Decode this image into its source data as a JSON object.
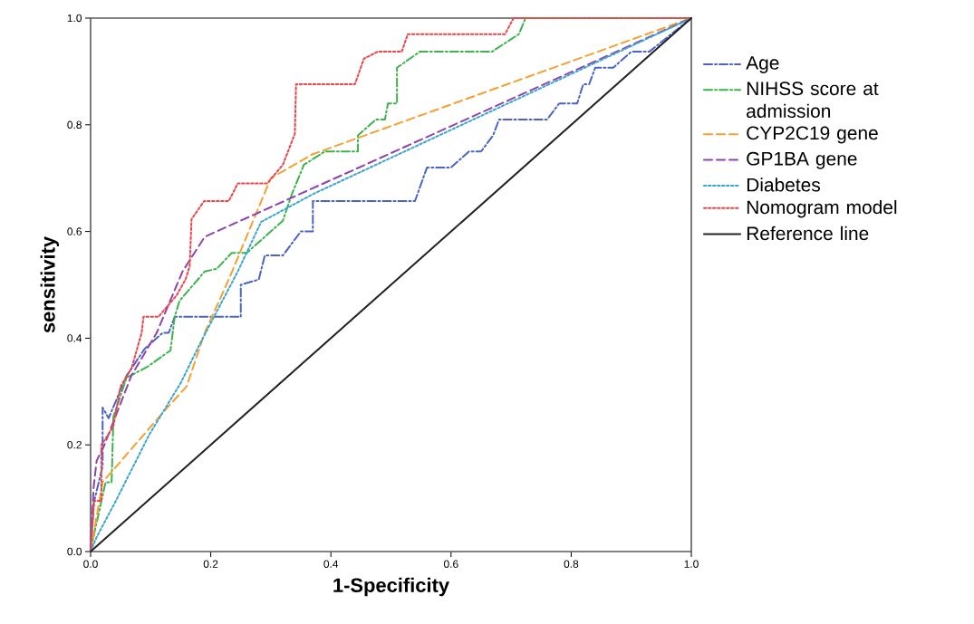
{
  "chart_data": {
    "type": "line",
    "xlabel": "1-Specificity",
    "ylabel": "sensitivity",
    "xlim": [
      0,
      1
    ],
    "ylim": [
      0,
      1
    ],
    "xticks": [
      {
        "value": 0,
        "label": "0.0"
      },
      0.2,
      0.4,
      0.6,
      0.8,
      {
        "value": 1,
        "label": "1.0"
      }
    ],
    "yticks": [
      {
        "value": 0,
        "label": "0.0"
      },
      0.2,
      0.4,
      0.6,
      0.8,
      {
        "value": 1,
        "label": "1.0"
      }
    ],
    "legend": "right",
    "grid": false,
    "series": [
      {
        "name": "Age",
        "color": "#4a63c8",
        "line_style": "dashdot",
        "x": [
          0,
          0.005,
          0.02,
          0.02,
          0.03,
          0.06,
          0.09,
          0.12,
          0.13,
          0.14,
          0.25,
          0.25,
          0.28,
          0.29,
          0.32,
          0.35,
          0.37,
          0.37,
          0.48,
          0.51,
          0.54,
          0.56,
          0.6,
          0.63,
          0.65,
          0.67,
          0.68,
          0.72,
          0.76,
          0.78,
          0.81,
          0.82,
          0.83,
          0.84,
          0.87,
          0.9,
          0.93,
          1
        ],
        "values": [
          0,
          0.09,
          0.16,
          0.27,
          0.25,
          0.33,
          0.38,
          0.41,
          0.41,
          0.44,
          0.44,
          0.5,
          0.51,
          0.555,
          0.555,
          0.6,
          0.6,
          0.657,
          0.657,
          0.657,
          0.657,
          0.72,
          0.72,
          0.75,
          0.75,
          0.78,
          0.81,
          0.81,
          0.81,
          0.84,
          0.84,
          0.876,
          0.876,
          0.907,
          0.907,
          0.937,
          0.937,
          1
        ]
      },
      {
        "name": "NIHSS score at admission",
        "color": "#3cb44b",
        "line_style": "dashdot",
        "x": [
          0,
          0.008,
          0.025,
          0.035,
          0.038,
          0.06,
          0.094,
          0.133,
          0.14,
          0.148,
          0.19,
          0.21,
          0.235,
          0.26,
          0.32,
          0.335,
          0.355,
          0.39,
          0.445,
          0.445,
          0.475,
          0.49,
          0.495,
          0.51,
          0.51,
          0.548,
          0.668,
          0.713,
          0.724,
          1
        ],
        "values": [
          0,
          0.044,
          0.13,
          0.13,
          0.253,
          0.326,
          0.346,
          0.377,
          0.44,
          0.47,
          0.525,
          0.53,
          0.56,
          0.56,
          0.62,
          0.67,
          0.725,
          0.75,
          0.75,
          0.78,
          0.81,
          0.81,
          0.84,
          0.84,
          0.907,
          0.937,
          0.937,
          0.97,
          1,
          1
        ]
      },
      {
        "name": "CYP2C19 gene",
        "color": "#f5a030",
        "line_style": "dashed",
        "x": [
          0,
          0.02,
          0.12,
          0.16,
          0.19,
          0.23,
          0.3,
          0.37,
          1
        ],
        "values": [
          0,
          0.13,
          0.26,
          0.31,
          0.41,
          0.51,
          0.7,
          0.745,
          1
        ]
      },
      {
        "name": "GP1BA gene",
        "color": "#8e44ad",
        "line_style": "dashed",
        "x": [
          0,
          0.005,
          0.01,
          0.023,
          0.068,
          0.11,
          0.153,
          0.19,
          1
        ],
        "values": [
          0,
          0.12,
          0.17,
          0.2,
          0.33,
          0.41,
          0.525,
          0.59,
          1
        ]
      },
      {
        "name": "Diabetes",
        "color": "#3aa6d0",
        "line_style": "dotted",
        "x": [
          0,
          0.01,
          0.042,
          0.098,
          0.15,
          0.184,
          0.245,
          0.284,
          0.37,
          1
        ],
        "values": [
          0,
          0.027,
          0.095,
          0.22,
          0.316,
          0.394,
          0.525,
          0.618,
          0.67,
          1
        ]
      },
      {
        "name": "Nomogram model",
        "color": "#f0434a",
        "line_style": "dotted",
        "x": [
          0,
          0.006,
          0.018,
          0.018,
          0.03,
          0.038,
          0.05,
          0.068,
          0.085,
          0.088,
          0.113,
          0.143,
          0.158,
          0.165,
          0.168,
          0.189,
          0.23,
          0.245,
          0.294,
          0.32,
          0.34,
          0.342,
          0.44,
          0.455,
          0.478,
          0.518,
          0.528,
          0.69,
          0.704,
          1
        ],
        "values": [
          0,
          0.095,
          0.095,
          0.2,
          0.22,
          0.236,
          0.31,
          0.343,
          0.41,
          0.44,
          0.44,
          0.48,
          0.51,
          0.535,
          0.623,
          0.657,
          0.657,
          0.69,
          0.69,
          0.725,
          0.783,
          0.876,
          0.876,
          0.924,
          0.937,
          0.937,
          0.97,
          0.97,
          1,
          1
        ]
      },
      {
        "name": "Reference line",
        "color": "#222222",
        "line_style": "solid",
        "x": [
          0,
          1
        ],
        "values": [
          0,
          1
        ]
      }
    ]
  }
}
